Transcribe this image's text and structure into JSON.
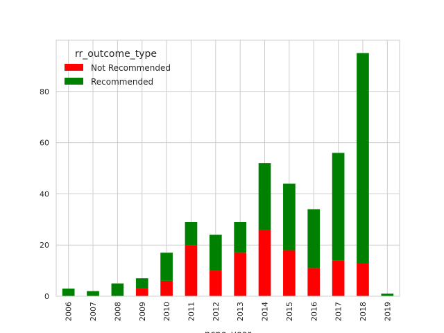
{
  "chart_data": {
    "type": "bar",
    "stacked": true,
    "categories": [
      "2006",
      "2007",
      "2008",
      "2009",
      "2010",
      "2011",
      "2012",
      "2013",
      "2014",
      "2015",
      "2016",
      "2017",
      "2018",
      "2019"
    ],
    "series": [
      {
        "name": "Not Recommended",
        "color": "#ff0000",
        "values": [
          0,
          0,
          0,
          3,
          6,
          20,
          10,
          17,
          26,
          18,
          11,
          14,
          13,
          0
        ]
      },
      {
        "name": "Recommended",
        "color": "#008000",
        "values": [
          3,
          2,
          5,
          4,
          11,
          9,
          14,
          12,
          26,
          26,
          23,
          42,
          82,
          1
        ]
      }
    ],
    "legend_title": "rr_outcome_type",
    "legend_position": "upper-left",
    "xlabel": "ncpe_year",
    "ylabel": "",
    "ylim": [
      0,
      100
    ],
    "yticks": [
      0,
      20,
      40,
      60,
      80
    ],
    "grid": true
  }
}
